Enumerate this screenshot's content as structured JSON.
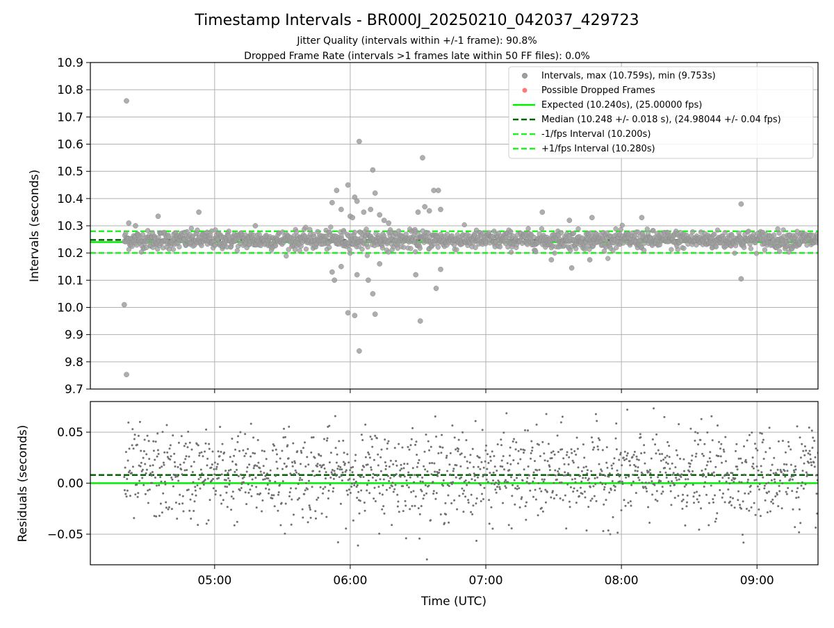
{
  "figure": {
    "title": "Timestamp Intervals - BR000J_20250210_042037_429723",
    "subtitle_1": "Jitter Quality (intervals within +/-1 frame): 90.8%",
    "subtitle_2": "Dropped Frame Rate (intervals >1 frames late within 50 FF files): 0.0%"
  },
  "colors": {
    "intervals": "#a0a0a0",
    "intervals_edge": "#8a8a8a",
    "dropped": "#ff5a5a",
    "expected": "#00ee00",
    "median": "#006400",
    "fps_band": "#22ee22",
    "residuals": "#707070",
    "grid": "#b0b0b0"
  },
  "chart_data": [
    {
      "type": "scatter",
      "panel": "top",
      "ylabel": "Intervals (seconds)",
      "ylim": [
        9.7,
        10.9
      ],
      "xlim": [
        "04:05",
        "09:27"
      ],
      "yticks": [
        "10.9",
        "10.8",
        "10.7",
        "10.6",
        "10.5",
        "10.4",
        "10.3",
        "10.2",
        "10.1",
        "10.0",
        "9.9",
        "9.8",
        "9.7"
      ],
      "grid": true,
      "legend": "top-right",
      "legend_entries": [
        "Intervals, max (10.759s), min (9.753s)",
        "Possible Dropped Frames",
        "Expected (10.240s), (25.00000 fps)",
        "Median (10.248 +/- 0.018 s), (24.98044 +/- 0.04 fps)",
        "-1/fps Interval (10.200s)",
        "+1/fps Interval (10.280s)"
      ],
      "reference_lines": {
        "expected": 10.24,
        "median": 10.248,
        "minus_one_frame": 10.2,
        "plus_one_frame": 10.28
      },
      "series": [
        {
          "name": "Intervals, max (10.759s), min (9.753s)",
          "interval_min": 9.753,
          "interval_max": 10.759,
          "count_approx": 1500,
          "time_start": "04:20",
          "time_end": "09:27",
          "outliers": [
            {
              "x": "04:21",
              "y": 10.759
            },
            {
              "x": "04:20",
              "y": 10.01
            },
            {
              "x": "04:21",
              "y": 9.753
            },
            {
              "x": "04:22",
              "y": 10.31
            },
            {
              "x": "04:25",
              "y": 10.3
            },
            {
              "x": "04:35",
              "y": 10.335
            },
            {
              "x": "04:53",
              "y": 10.35
            },
            {
              "x": "05:18",
              "y": 10.3
            },
            {
              "x": "05:52",
              "y": 10.385
            },
            {
              "x": "05:54",
              "y": 10.43
            },
            {
              "x": "05:56",
              "y": 10.36
            },
            {
              "x": "05:59",
              "y": 10.45
            },
            {
              "x": "06:00",
              "y": 10.335
            },
            {
              "x": "06:01",
              "y": 10.33
            },
            {
              "x": "06:02",
              "y": 10.405
            },
            {
              "x": "06:03",
              "y": 10.39
            },
            {
              "x": "06:04",
              "y": 10.61
            },
            {
              "x": "06:06",
              "y": 10.35
            },
            {
              "x": "06:09",
              "y": 10.36
            },
            {
              "x": "06:10",
              "y": 10.505
            },
            {
              "x": "06:11",
              "y": 10.42
            },
            {
              "x": "06:13",
              "y": 10.34
            },
            {
              "x": "06:15",
              "y": 10.32
            },
            {
              "x": "06:17",
              "y": 10.31
            },
            {
              "x": "06:30",
              "y": 10.35
            },
            {
              "x": "06:32",
              "y": 10.55
            },
            {
              "x": "06:33",
              "y": 10.37
            },
            {
              "x": "06:35",
              "y": 10.355
            },
            {
              "x": "06:37",
              "y": 10.43
            },
            {
              "x": "06:39",
              "y": 10.43
            },
            {
              "x": "06:40",
              "y": 10.36
            },
            {
              "x": "05:52",
              "y": 10.13
            },
            {
              "x": "05:53",
              "y": 10.1
            },
            {
              "x": "05:56",
              "y": 10.15
            },
            {
              "x": "05:59",
              "y": 9.98
            },
            {
              "x": "06:02",
              "y": 9.97
            },
            {
              "x": "06:03",
              "y": 10.12
            },
            {
              "x": "06:04",
              "y": 9.84
            },
            {
              "x": "06:08",
              "y": 10.1
            },
            {
              "x": "06:10",
              "y": 10.05
            },
            {
              "x": "06:11",
              "y": 9.975
            },
            {
              "x": "06:13",
              "y": 10.16
            },
            {
              "x": "06:29",
              "y": 10.12
            },
            {
              "x": "06:31",
              "y": 9.95
            },
            {
              "x": "06:38",
              "y": 10.07
            },
            {
              "x": "06:40",
              "y": 10.14
            },
            {
              "x": "07:25",
              "y": 10.35
            },
            {
              "x": "07:37",
              "y": 10.32
            },
            {
              "x": "07:47",
              "y": 10.33
            },
            {
              "x": "08:09",
              "y": 10.33
            },
            {
              "x": "08:53",
              "y": 10.38
            },
            {
              "x": "08:53",
              "y": 10.105
            },
            {
              "x": "07:29",
              "y": 10.175
            },
            {
              "x": "07:38",
              "y": 10.145
            },
            {
              "x": "07:46",
              "y": 10.175
            }
          ]
        },
        {
          "name": "Possible Dropped Frames",
          "count": 0
        }
      ]
    },
    {
      "type": "scatter",
      "panel": "bottom",
      "xlabel": "Time (UTC)",
      "ylabel": "Residuals (seconds)",
      "ylim": [
        -0.08,
        0.08
      ],
      "yticks": [
        "0.05",
        "0.00",
        "−0.05"
      ],
      "xticks": [
        "05:00",
        "06:00",
        "07:00",
        "08:00",
        "09:00"
      ],
      "grid": true,
      "reference_lines": {
        "expected": 0.0,
        "median_offset": 0.008
      },
      "series": [
        {
          "name": "Residuals",
          "count_approx": 1500,
          "time_start": "04:20",
          "time_end": "09:27",
          "min_visible": -0.08,
          "max_visible": 0.08
        }
      ]
    }
  ]
}
